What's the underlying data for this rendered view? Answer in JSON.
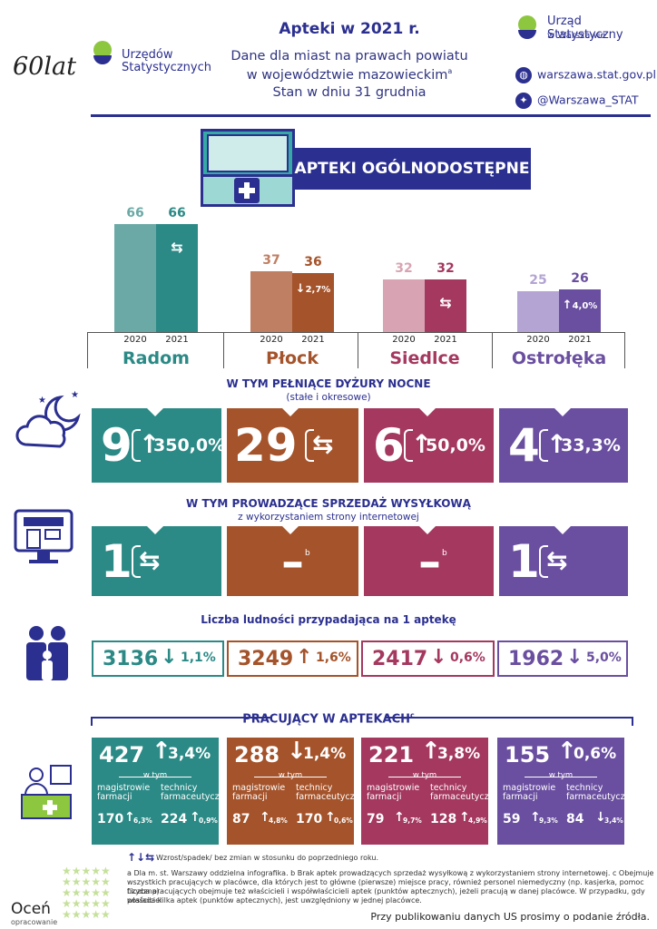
{
  "header": {
    "title": "Apteki w 2021 r.",
    "subtitle_line1": "Dane dla miast na prawach powiatu",
    "subtitle_line2": "w województwie mazowieckim",
    "subtitle_sup": "a",
    "subtitle_line3": "Stan w dniu 31 grudnia"
  },
  "anniversary": {
    "sixty": "60lat",
    "line1": "Urzędów",
    "line2": "Statystycznych"
  },
  "office": {
    "name": "Urząd Statystyczny",
    "city": "w Warszawie",
    "website": "warszawa.stat.gov.pl",
    "twitter": "@Warszawa_STAT",
    "colors": {
      "navy": "#2b2f8f",
      "green": "#8dc63f"
    }
  },
  "banner": {
    "label": "APTEKI OGÓLNODOSTĘPNE"
  },
  "cities": [
    {
      "name": "Radom",
      "color": "#2b8a86",
      "light": "#6aa9a6"
    },
    {
      "name": "Płock",
      "color": "#a4532a",
      "light": "#bf7f62"
    },
    {
      "name": "Siedlce",
      "color": "#a4385f",
      "light": "#d8a4b3"
    },
    {
      "name": "Ostrołęka",
      "color": "#6a4fa0",
      "light": "#b3a4d3"
    }
  ],
  "chart_data": {
    "type": "bar",
    "categories": [
      "Radom",
      "Płock",
      "Siedlce",
      "Ostrołęka"
    ],
    "x_labels": [
      "2020",
      "2021"
    ],
    "series": [
      {
        "name": "2020",
        "values": [
          66,
          37,
          32,
          25
        ]
      },
      {
        "name": "2021",
        "values": [
          66,
          36,
          32,
          26
        ]
      }
    ],
    "changes": [
      {
        "direction": "same",
        "label": ""
      },
      {
        "direction": "down",
        "label": "2,7%"
      },
      {
        "direction": "same",
        "label": ""
      },
      {
        "direction": "up",
        "label": "4,0%"
      }
    ]
  },
  "night": {
    "title": "W TYM PEŁNIĄCE DYŻURY NOCNE",
    "subtitle": "(stałe i okresowe)",
    "tiles": [
      {
        "value": "9",
        "direction": "up",
        "pct": "350,0%"
      },
      {
        "value": "29",
        "direction": "same",
        "pct": ""
      },
      {
        "value": "6",
        "direction": "up",
        "pct": "50,0%"
      },
      {
        "value": "4",
        "direction": "up",
        "pct": "33,3%"
      }
    ]
  },
  "mail": {
    "title": "W TYM  PROWADZĄCE SPRZEDAŻ WYSYŁKOWĄ",
    "subtitle": "z wykorzystaniem strony internetowej",
    "tiles": [
      {
        "value": "1",
        "direction": "same",
        "mark": ""
      },
      {
        "value": "–",
        "direction": "",
        "mark": "b"
      },
      {
        "value": "–",
        "direction": "",
        "mark": "b"
      },
      {
        "value": "1",
        "direction": "same",
        "mark": ""
      }
    ]
  },
  "population": {
    "title": "Liczba ludności przypadająca na 1 aptekę",
    "items": [
      {
        "value": "3136",
        "direction": "down",
        "pct": "1,1%"
      },
      {
        "value": "3249",
        "direction": "up",
        "pct": "1,6%"
      },
      {
        "value": "2417",
        "direction": "down",
        "pct": "0,6%"
      },
      {
        "value": "1962",
        "direction": "down",
        "pct": "5,0%"
      }
    ]
  },
  "employees": {
    "title": "PRACUJĄCY W APTEKACH",
    "title_sup": "c",
    "within": "w tym",
    "label_a1": "magistrowie",
    "label_a2": "farmacji",
    "label_b1": "technicy",
    "label_b2": "farmaceutyczni",
    "items": [
      {
        "total": "427",
        "t_dir": "up",
        "t_pct": "3,4%",
        "mag": "170",
        "mag_dir": "up",
        "mag_pct": "6,3%",
        "tech": "224",
        "tech_dir": "up",
        "tech_pct": "0,9%"
      },
      {
        "total": "288",
        "t_dir": "down",
        "t_pct": "1,4%",
        "mag": "87",
        "mag_dir": "up",
        "mag_pct": "4,8%",
        "tech": "170",
        "tech_dir": "up",
        "tech_pct": "0,6%"
      },
      {
        "total": "221",
        "t_dir": "up",
        "t_pct": "3,8%",
        "mag": "79",
        "mag_dir": "up",
        "mag_pct": "9,7%",
        "tech": "128",
        "tech_dir": "up",
        "tech_pct": "4,9%"
      },
      {
        "total": "155",
        "t_dir": "up",
        "t_pct": "0,6%",
        "mag": "59",
        "mag_dir": "up",
        "mag_pct": "9,3%",
        "tech": "84",
        "tech_dir": "down",
        "tech_pct": "3,4%"
      }
    ]
  },
  "notes": {
    "legend_arrows": "↑↓⇆",
    "legend": "Wzrost/spadek/ bez zmian w stosunku do poprzedniego roku.",
    "line1": "a  Dla m. st. Warszawy oddzielna infografika.   b  Brak aptek prowadzących sprzedaż wysyłkową z wykorzystaniem strony internetowej.   c  Obejmuje",
    "line2": "wszystkich pracujących w placówce, dla których jest to główne (pierwsze) miejsce pracy, również personel niemedyczny (np. kasjerka, pomoc fizyczna).",
    "line3": "Liczba pracujących obejmuje też właścicieli i współwłaścicieli aptek (punktów aptecznych), jeżeli pracują w danej placówce. W przypadku, gdy właściciel",
    "line4": "posiada kilka aptek (punktów aptecznych), jest uwzględniony w jednej placówce."
  },
  "rating": {
    "label": "Oceń",
    "sub": "opracowanie"
  },
  "footer": "Przy publikowaniu danych US prosimy o podanie źródła."
}
